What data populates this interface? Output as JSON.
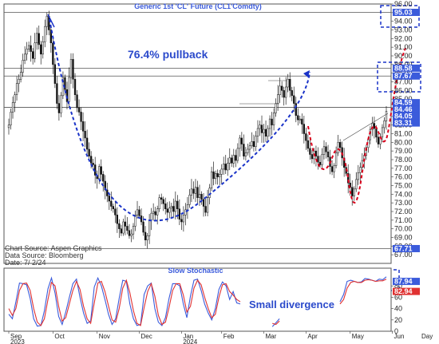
{
  "chart_data": [
    {
      "type": "candlestick",
      "title": "Generic 1st 'CL' Future (CL1'Comdty)",
      "annotation": "76.4% pullback",
      "source_lines": [
        "Chart Source: Aspen Graphics",
        "Data Source: Bloomberg",
        "Date: 7/ 2/24"
      ],
      "ylim": [
        66,
        96
      ],
      "y_ticks": [
        67,
        68,
        69,
        70,
        71,
        72,
        73,
        74,
        75,
        76,
        77,
        78,
        79,
        80,
        81,
        82,
        83,
        84,
        85,
        86,
        87,
        88,
        89,
        90,
        91,
        92,
        93,
        94,
        95,
        96
      ],
      "y_tick_labels": [
        "67.00",
        "68.00",
        "69.00",
        "70.00",
        "71.00",
        "72.00",
        "73.00",
        "74.00",
        "75.00",
        "76.00",
        "77.00",
        "78.00",
        "79.00",
        "80.00",
        "81.00",
        "82.00",
        "83.00",
        "84.00",
        "85.00",
        "86.00",
        "87.00",
        "88.00",
        "89.00",
        "90.00",
        "91.00",
        "92.00",
        "93.00",
        "94.00",
        "95.00",
        "96.00"
      ],
      "price_flags": [
        {
          "label": "95.03",
          "value": 95.03,
          "color": "#3b5bdb"
        },
        {
          "label": "88.58",
          "value": 88.58,
          "color": "#3b5bdb"
        },
        {
          "label": "87.67",
          "value": 87.67,
          "color": "#3b5bdb"
        },
        {
          "label": "84.59",
          "value": 84.59,
          "color": "#3b5bdb"
        },
        {
          "label": "84.46",
          "value": 84.46,
          "color": "#3b5bdb"
        },
        {
          "label": "84.05",
          "value": 84.05,
          "color": "#3b5bdb"
        },
        {
          "label": "83.31",
          "value": 83.31,
          "color": "#3b5bdb"
        },
        {
          "label": "67.71",
          "value": 67.71,
          "color": "#3b5bdb"
        }
      ],
      "horizontal_lines": [
        95.03,
        88.58,
        87.67,
        84.05,
        67.71
      ],
      "month_labels": [
        "Sep",
        "Oct",
        "Nov",
        "Dec",
        "Jan",
        "Feb",
        "Mar",
        "Apr",
        "May",
        "Jun"
      ],
      "month_ticks": [
        0,
        22,
        44,
        65,
        86,
        106,
        127,
        148,
        170,
        191
      ],
      "year_labels": [
        {
          "at": 0,
          "label": "2023"
        },
        {
          "at": 86,
          "label": "2024"
        }
      ],
      "x_unit_label": "Day",
      "closes": [
        82.0,
        83.5,
        84.6,
        85.5,
        86.8,
        87.3,
        88.1,
        89.5,
        90.2,
        90.8,
        91.2,
        90.5,
        89.7,
        91.5,
        92.6,
        91.3,
        90.2,
        91.6,
        93.4,
        94.6,
        93.0,
        91.5,
        89.0,
        86.8,
        84.5,
        83.4,
        85.4,
        87.5,
        86.1,
        84.7,
        87.5,
        89.6,
        87.3,
        85.5,
        84.0,
        83.5,
        82.4,
        81.3,
        80.5,
        79.2,
        78.4,
        77.6,
        77.4,
        76.2,
        75.8,
        77.2,
        76.3,
        75.5,
        74.5,
        73.8,
        73.2,
        72.6,
        72.3,
        71.6,
        70.6,
        70.0,
        69.5,
        70.8,
        70.3,
        69.8,
        69.2,
        69.4,
        70.3,
        71.6,
        72.2,
        71.5,
        70.8,
        69.6,
        68.7,
        69.2,
        71.0,
        71.8,
        72.0,
        71.6,
        72.3,
        73.6,
        73.4,
        72.9,
        72.3,
        71.9,
        72.4,
        72.6,
        72.0,
        73.2,
        72.3,
        71.1,
        70.8,
        71.6,
        72.2,
        72.8,
        73.9,
        74.6,
        74.1,
        74.8,
        73.6,
        74.0,
        73.4,
        72.6,
        71.9,
        73.6,
        74.7,
        76.6,
        75.8,
        76.4,
        76.0,
        76.3,
        76.9,
        77.5,
        76.8,
        77.6,
        78.2,
        77.6,
        78.5,
        77.9,
        79.3,
        80.5,
        79.8,
        78.4,
        78.8,
        79.2,
        79.6,
        80.1,
        79.5,
        80.7,
        81.6,
        82.0,
        81.1,
        81.5,
        80.7,
        81.6,
        82.7,
        82.0,
        83.4,
        84.5,
        85.5,
        86.5,
        86.0,
        85.2,
        86.4,
        87.3,
        86.0,
        85.4,
        84.5,
        83.1,
        82.6,
        82.7,
        82.1,
        81.0,
        80.2,
        79.3,
        78.6,
        78.1,
        79.0,
        78.4,
        77.7,
        77.4,
        78.6,
        79.5,
        78.9,
        78.3,
        77.2,
        76.6,
        77.3,
        78.8,
        80.0,
        79.4,
        78.2,
        77.1,
        76.4,
        75.3,
        74.8,
        73.8,
        74.6,
        75.7,
        76.5,
        77.1,
        77.9,
        78.5,
        79.4,
        80.3,
        81.5,
        82.2,
        81.6,
        80.6,
        79.8,
        80.6,
        81.7,
        82.5,
        83.6
      ]
    },
    {
      "type": "line",
      "title": "Slow Stochastic",
      "annotation": "Small divergence",
      "ylim": [
        0,
        100
      ],
      "y_ticks": [
        0,
        20,
        40,
        60,
        80
      ],
      "y_tick_labels": [
        "0",
        "20",
        "40",
        "60",
        "80"
      ],
      "value_flags": [
        {
          "label": "87.94",
          "value": 87.94,
          "color": "#3b5bdb"
        },
        {
          "label": "82.94",
          "value": 82.94,
          "color": "#e03131"
        }
      ],
      "series": [
        {
          "color": "#3b5bdb",
          "values": [
            30,
            22,
            52,
            85,
            84,
            82,
            58,
            22,
            9,
            10,
            36,
            75,
            94,
            67,
            26,
            12,
            34,
            60,
            84,
            92,
            60,
            32,
            14,
            18,
            78,
            94,
            80,
            56,
            30,
            12,
            22,
            58,
            90,
            88,
            48,
            22,
            10,
            12,
            65,
            80,
            85,
            40,
            16,
            10,
            24,
            58,
            84,
            84,
            80,
            48,
            24,
            62,
            90,
            92,
            72,
            48,
            32,
            20,
            40,
            74,
            87,
            80,
            56,
            70,
            50,
            48,
            null,
            null,
            null,
            null,
            null,
            null,
            null,
            null,
            8,
            15,
            22,
            null,
            null,
            null,
            null,
            null,
            null,
            null,
            null,
            null,
            null,
            null,
            null,
            null,
            null,
            null,
            null,
            52,
            65,
            88,
            90,
            88,
            86,
            87,
            93,
            92,
            90,
            88,
            92,
            91,
            96
          ]
        },
        {
          "color": "#e03131",
          "values": [
            40,
            28,
            40,
            72,
            84,
            85,
            72,
            40,
            16,
            10,
            22,
            56,
            86,
            80,
            44,
            18,
            24,
            48,
            72,
            88,
            74,
            44,
            22,
            14,
            50,
            85,
            88,
            70,
            45,
            20,
            16,
            40,
            76,
            90,
            68,
            36,
            14,
            10,
            42,
            70,
            84,
            62,
            28,
            12,
            16,
            42,
            72,
            84,
            84,
            64,
            34,
            44,
            76,
            90,
            82,
            60,
            40,
            24,
            30,
            60,
            82,
            84,
            70,
            64,
            56,
            52,
            null,
            null,
            null,
            null,
            null,
            null,
            null,
            null,
            14,
            12,
            18,
            null,
            null,
            null,
            null,
            null,
            null,
            null,
            null,
            null,
            null,
            null,
            null,
            null,
            null,
            null,
            null,
            48,
            56,
            76,
            86,
            88,
            86,
            86,
            90,
            91,
            90,
            88,
            89,
            89,
            92
          ]
        }
      ]
    }
  ]
}
